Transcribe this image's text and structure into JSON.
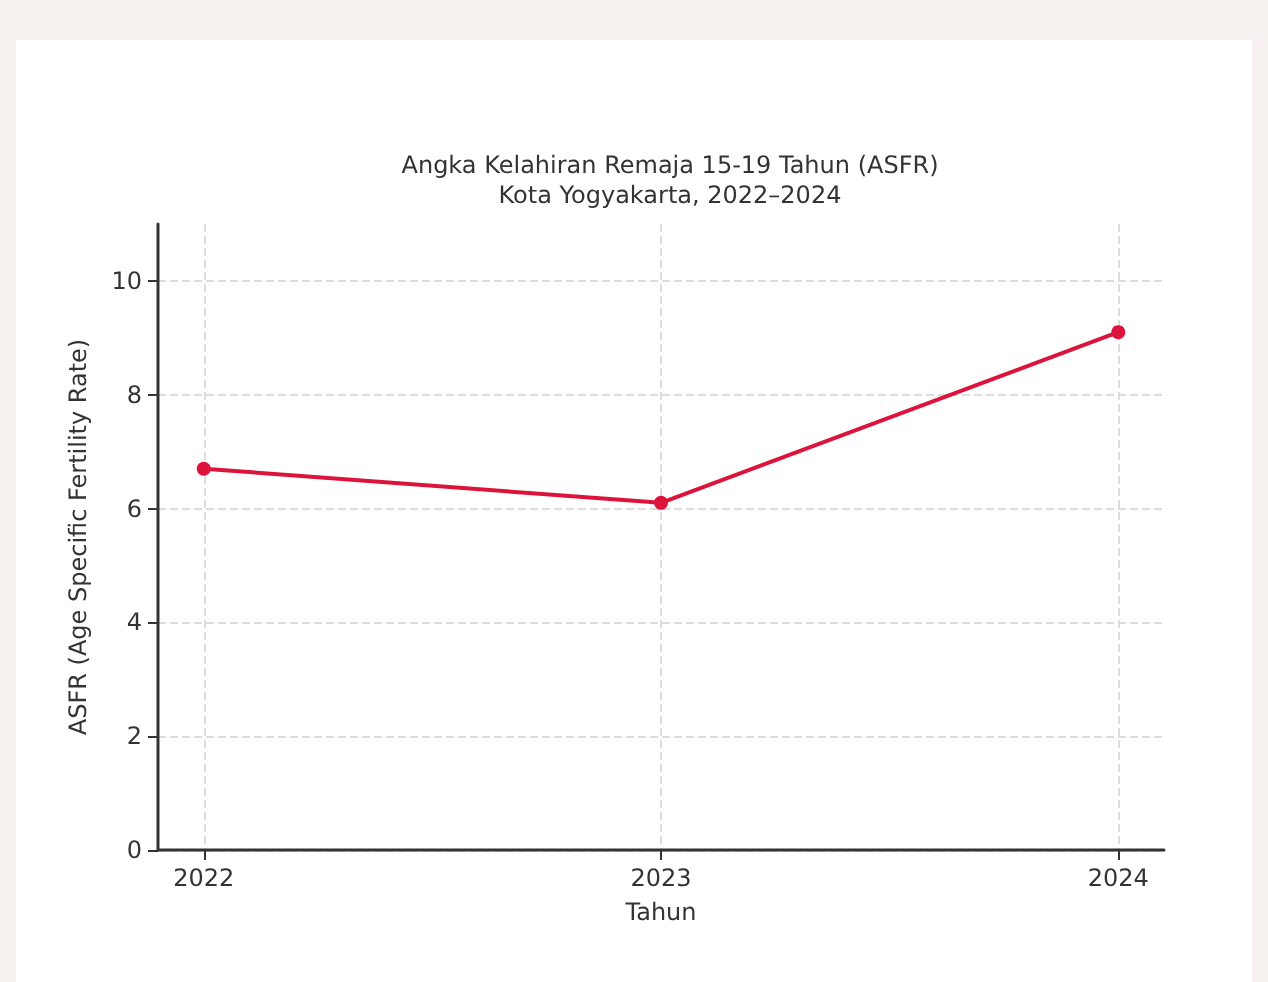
{
  "chart_data": {
    "type": "line",
    "title": "Angka Kelahiran Remaja 15-19 Tahun (ASFR)\nKota Yogyakarta, 2022–2024",
    "xlabel": "Tahun",
    "ylabel": "ASFR (Age Specific Fertility Rate)",
    "x": [
      2022,
      2023,
      2024
    ],
    "series": [
      {
        "color": "#dc143c",
        "values": [
          6.7,
          6.1,
          9.1
        ]
      }
    ],
    "xlim": [
      2021.9,
      2024.1
    ],
    "xticks": [
      2022,
      2023,
      2024
    ],
    "ylim": [
      0,
      11
    ],
    "yticks": [
      0,
      2,
      4,
      6,
      8,
      10
    ],
    "grid": true,
    "marker": "circle",
    "line_style": "solid"
  }
}
